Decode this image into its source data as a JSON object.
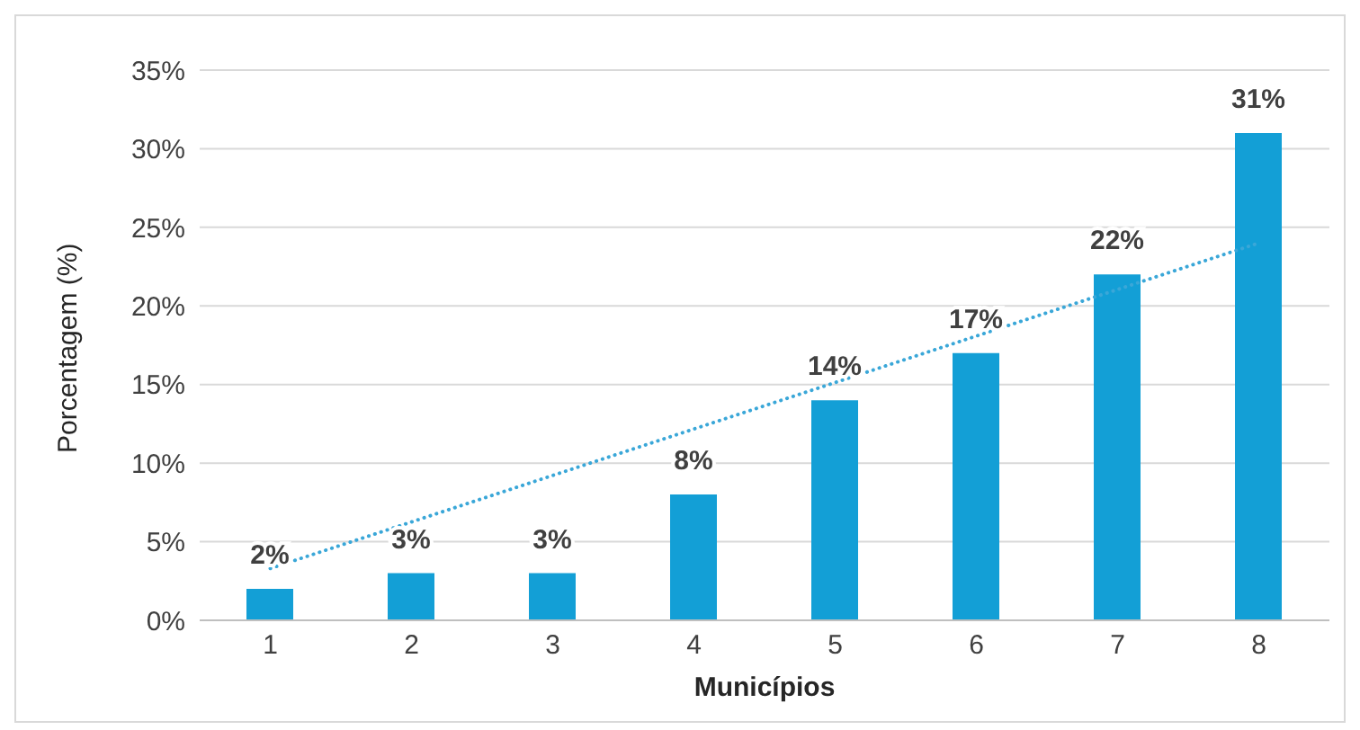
{
  "chart_data": {
    "type": "bar",
    "xlabel": "Municípios",
    "ylabel": "Porcentagem (%)",
    "categories": [
      "1",
      "2",
      "3",
      "4",
      "5",
      "6",
      "7",
      "8"
    ],
    "series": [
      {
        "color": "#139fd6",
        "values": [
          2,
          3,
          3,
          8,
          14,
          17,
          22,
          31
        ],
        "value_labels": [
          "2%",
          "3%",
          "3%",
          "8%",
          "14%",
          "17%",
          "22%",
          "31%"
        ]
      },
      {
        "type": "line",
        "color": "#3aa7d8",
        "x": [
          "1",
          "8"
        ],
        "values": [
          3.3,
          24
        ],
        "line_style": "dotted",
        "marker": "none"
      }
    ],
    "ylim": [
      0,
      35
    ],
    "yticks": [
      {
        "value": 0,
        "label": "0%"
      },
      {
        "value": 5,
        "label": "5%"
      },
      {
        "value": 10,
        "label": "10%"
      },
      {
        "value": 15,
        "label": "15%"
      },
      {
        "value": 20,
        "label": "20%"
      },
      {
        "value": 25,
        "label": "25%"
      },
      {
        "value": 30,
        "label": "30%"
      },
      {
        "value": 35,
        "label": "35%"
      }
    ],
    "grid": "y",
    "legend": false
  }
}
